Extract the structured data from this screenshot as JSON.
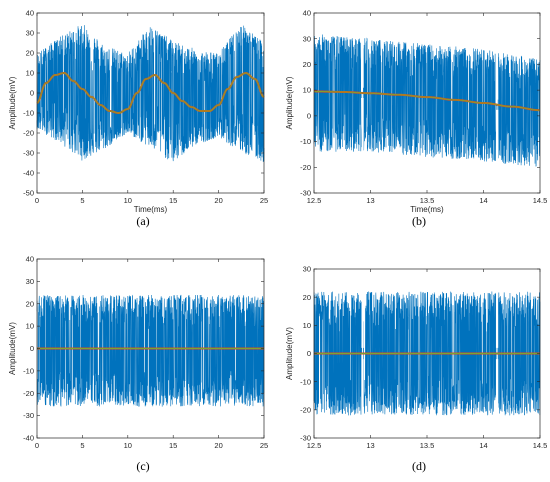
{
  "chart_data": [
    {
      "panel": "(a)",
      "type": "line",
      "xlabel": "Time(ms)",
      "ylabel": "Amplitude(mV)",
      "xlim": [
        0,
        25
      ],
      "ylim": [
        -50,
        40
      ],
      "xticks": [
        0,
        5,
        10,
        15,
        20,
        25
      ],
      "yticks": [
        40,
        30,
        20,
        10,
        0,
        -10,
        -20,
        -30,
        -40,
        -50
      ],
      "grid": false,
      "colors": {
        "noisy": "#0072BD",
        "trend": "#D95319",
        "smooth": "#77AC30"
      },
      "series": [
        {
          "description": "noisy recorded signal",
          "envelope_x": [
            0,
            2.5,
            5,
            7.5,
            10,
            12.5,
            15,
            17.5,
            20,
            22.5,
            25
          ],
          "envelope_upper": [
            20,
            28,
            35,
            24,
            20,
            34,
            26,
            22,
            20,
            35,
            25
          ],
          "envelope_lower": [
            -18,
            -25,
            -34,
            -28,
            -20,
            -28,
            -35,
            -26,
            -22,
            -30,
            -35
          ]
        },
        {
          "description": "slow baseline wander",
          "x": [
            0,
            1,
            2,
            3,
            4,
            5,
            6,
            7,
            8,
            9,
            10,
            11,
            12,
            13,
            14,
            15,
            16,
            17,
            18,
            19,
            20,
            21,
            22,
            23,
            24,
            25
          ],
          "y": [
            -5,
            5,
            9,
            10,
            6,
            2,
            -2,
            -6,
            -9,
            -10,
            -8,
            0,
            7,
            9,
            5,
            0,
            -4,
            -7,
            -9,
            -9,
            -6,
            2,
            8,
            10,
            7,
            -2
          ]
        }
      ]
    },
    {
      "panel": "(b)",
      "type": "line",
      "xlabel": "Time(ms)",
      "ylabel": "Amplitude(mV)",
      "xlim": [
        12.5,
        14.5
      ],
      "ylim": [
        -30,
        40
      ],
      "xticks": [
        12.5,
        13,
        13.5,
        14,
        14.5
      ],
      "yticks": [
        40,
        30,
        20,
        10,
        0,
        -10,
        -20,
        -30
      ],
      "grid": false,
      "colors": {
        "noisy": "#0072BD",
        "trend": "#D95319",
        "smooth": "#77AC30"
      },
      "series": [
        {
          "description": "noisy recorded signal",
          "envelope_x": [
            12.5,
            13,
            13.5,
            14,
            14.5
          ],
          "envelope_upper": [
            32,
            30,
            28,
            26,
            22
          ],
          "envelope_lower": [
            -14,
            -14,
            -16,
            -18,
            -20
          ],
          "gaps_x": [
            12.93,
            14.12
          ]
        },
        {
          "description": "slow baseline wander",
          "x": [
            12.5,
            12.75,
            13,
            13.25,
            13.5,
            13.75,
            14,
            14.25,
            14.5
          ],
          "y": [
            9.5,
            9.3,
            8.8,
            8.2,
            7.3,
            6.2,
            5,
            3.6,
            2.2
          ]
        }
      ]
    },
    {
      "panel": "(c)",
      "type": "line",
      "xlabel": "",
      "ylabel": "Amplitude(mV)",
      "xlim": [
        0,
        25
      ],
      "ylim": [
        -40,
        40
      ],
      "xticks": [
        0,
        5,
        10,
        15,
        20,
        25
      ],
      "yticks": [
        40,
        30,
        20,
        10,
        0,
        -10,
        -20,
        -30,
        -40
      ],
      "grid": false,
      "colors": {
        "noisy": "#0072BD",
        "trend": "#D95319",
        "smooth": "#77AC30"
      },
      "series": [
        {
          "description": "noisy signal after baseline removal",
          "envelope_x": [
            0,
            5,
            10,
            15,
            20,
            25
          ],
          "envelope_upper": [
            24,
            24,
            24,
            24,
            24,
            24
          ],
          "envelope_lower": [
            -26,
            -26,
            -26,
            -26,
            -26,
            -26
          ]
        },
        {
          "description": "zero baseline",
          "x": [
            0,
            25
          ],
          "y": [
            0,
            0
          ]
        }
      ]
    },
    {
      "panel": "(d)",
      "type": "line",
      "xlabel": "",
      "ylabel": "Amplitude(mV)",
      "xlim": [
        12.5,
        14.5
      ],
      "ylim": [
        -30,
        30
      ],
      "xticks": [
        12.5,
        13,
        13.5,
        14,
        14.5
      ],
      "yticks": [
        30,
        20,
        10,
        0,
        -10,
        -20,
        -30
      ],
      "grid": false,
      "colors": {
        "noisy": "#0072BD",
        "trend": "#D95319",
        "smooth": "#77AC30"
      },
      "series": [
        {
          "description": "noisy signal after baseline removal",
          "envelope_x": [
            12.5,
            13,
            13.5,
            14,
            14.5
          ],
          "envelope_upper": [
            22,
            22,
            22,
            22,
            22
          ],
          "envelope_lower": [
            -22,
            -22,
            -22,
            -22,
            -22
          ],
          "gaps_x": [
            12.93,
            14.12
          ]
        },
        {
          "description": "zero baseline",
          "x": [
            12.5,
            14.5
          ],
          "y": [
            0,
            0
          ]
        }
      ]
    }
  ]
}
